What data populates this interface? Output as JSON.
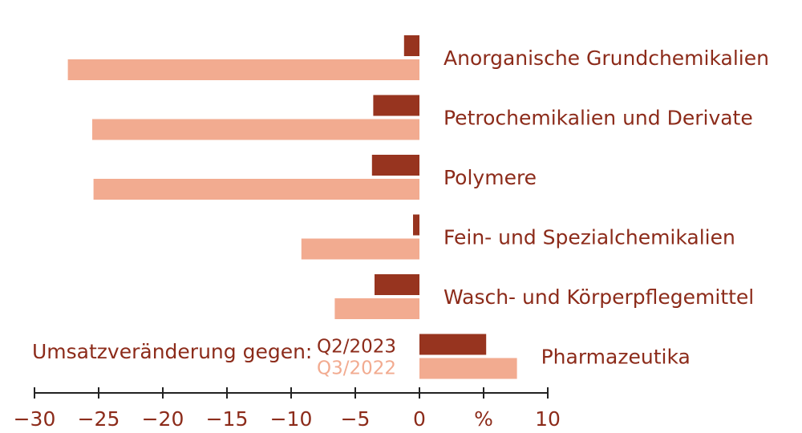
{
  "chart_data": {
    "type": "hbar",
    "categories": [
      "Anorganische Grundchemikalien",
      "Petrochemikalien und Derivate",
      "Polymere",
      "Fein- und Spezialchemikalien",
      "Wasch- und Körperpflegemittel",
      "Pharmazeutika"
    ],
    "series": [
      {
        "name": "Q2/2023",
        "color": "#97341f",
        "values": [
          -1.2,
          -3.6,
          -3.7,
          -0.5,
          -3.5,
          5.2
        ]
      },
      {
        "name": "Q3/2022",
        "color": "#f2ab90",
        "values": [
          -27.4,
          -25.5,
          -25.4,
          -9.2,
          -6.6,
          7.6
        ]
      }
    ],
    "legend_title": "Umsatzveränderung gegen:",
    "legend_position": "lower left",
    "xlim": [
      -30,
      10
    ],
    "xticks": [
      {
        "value": -30,
        "label": "−30"
      },
      {
        "value": -25,
        "label": "−25"
      },
      {
        "value": -20,
        "label": "−20"
      },
      {
        "value": -15,
        "label": "−15"
      },
      {
        "value": -10,
        "label": "−10"
      },
      {
        "value": -5,
        "label": "−5"
      },
      0,
      {
        "value": 5,
        "label": "%"
      },
      10
    ],
    "grid": false
  }
}
